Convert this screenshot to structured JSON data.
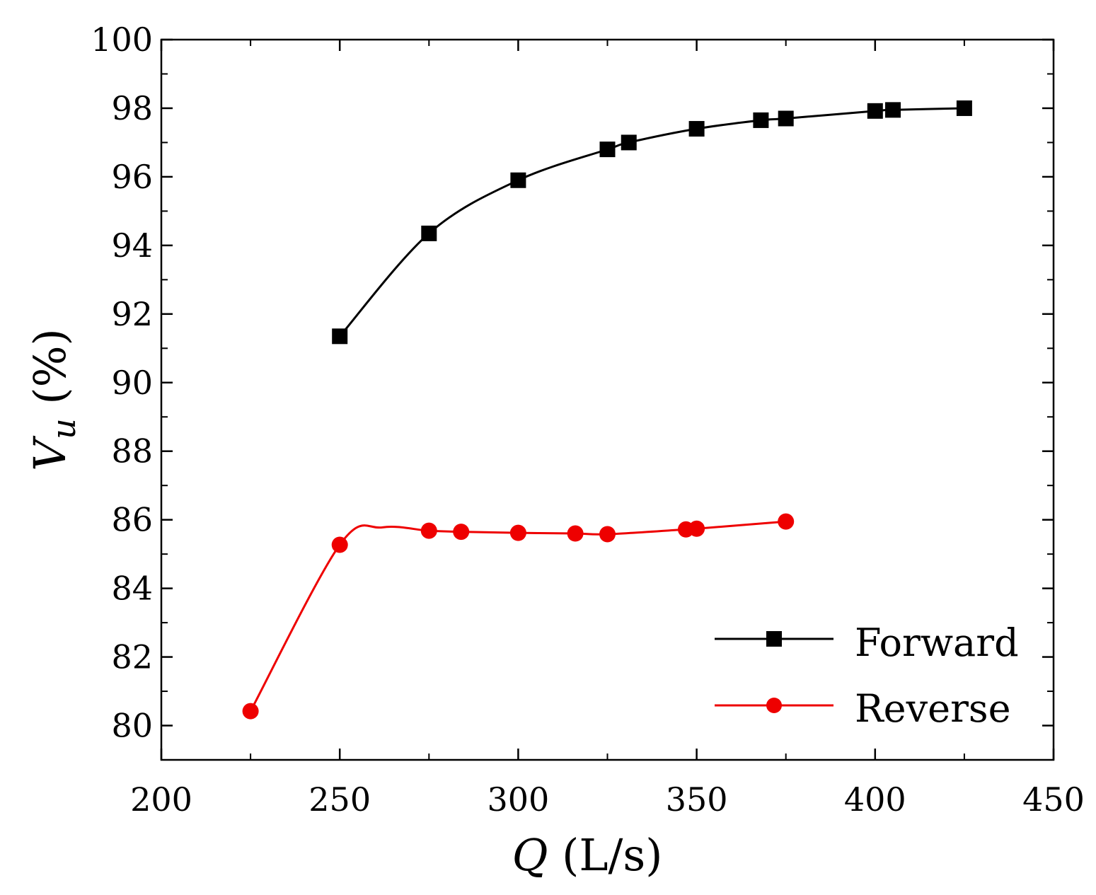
{
  "chart_data": {
    "type": "line",
    "xlabel": "Q (L/s)",
    "ylabel": "Vu (%)",
    "xlabel_parts": {
      "symbol": "Q",
      "unit": " (L/s)"
    },
    "ylabel_parts": {
      "symbol": "V",
      "subscript": "u",
      "unit": " (%)"
    },
    "xlim": [
      200,
      450
    ],
    "ylim": [
      79,
      100
    ],
    "xticks": [
      200,
      250,
      300,
      350,
      400,
      450
    ],
    "yticks": [
      80,
      82,
      84,
      86,
      88,
      90,
      92,
      94,
      96,
      98,
      100
    ],
    "grid": false,
    "legend_position": "bottom-right",
    "series": [
      {
        "name": "Forward",
        "color": "#000000",
        "marker": "square",
        "x": [
          250,
          275,
          300,
          325,
          331,
          350,
          368,
          375,
          400,
          405,
          425
        ],
        "y": [
          91.35,
          94.35,
          95.9,
          96.8,
          97.0,
          97.4,
          97.65,
          97.7,
          97.92,
          97.95,
          98.0
        ]
      },
      {
        "name": "Reverse",
        "color": "#ee0000",
        "marker": "circle",
        "x": [
          225,
          250,
          262,
          275,
          284,
          300,
          316,
          325,
          347,
          350,
          375
        ],
        "y": [
          80.42,
          85.27,
          85.78,
          85.68,
          85.65,
          85.62,
          85.6,
          85.58,
          85.72,
          85.74,
          85.95
        ],
        "curve_only": [
          false,
          false,
          true,
          false,
          false,
          false,
          false,
          false,
          false,
          false,
          false
        ]
      }
    ]
  }
}
